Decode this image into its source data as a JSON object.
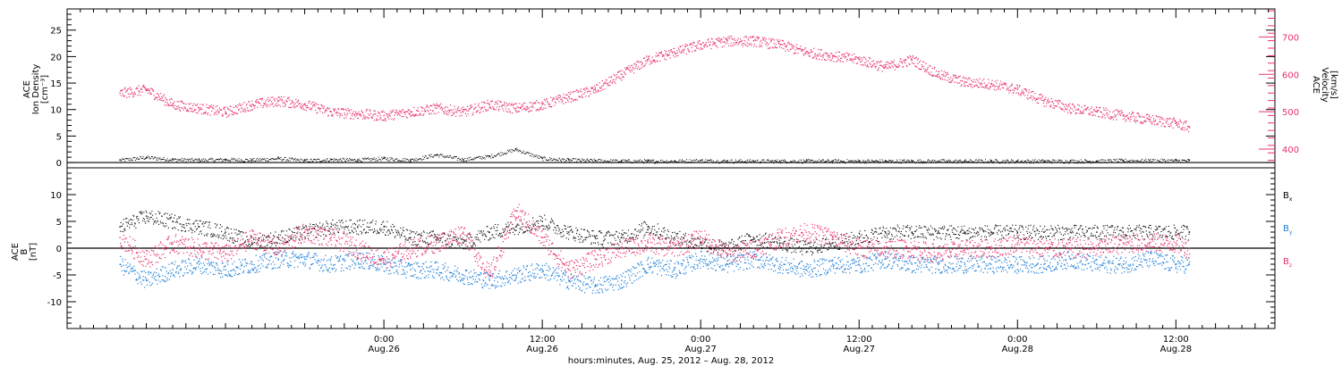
{
  "colors": {
    "black": "#000000",
    "pink": "#e8336b",
    "blue": "#1f7fd8"
  },
  "chart_data": [
    {
      "type": "scatter",
      "panel": "top",
      "left_axis_label_lines": [
        "ACE",
        "Ion Density",
        "[cm⁻³]"
      ],
      "right_axis_label_lines": [
        "ACE",
        "Velocity",
        "[km/s]"
      ],
      "ylim_left": [
        -1,
        29
      ],
      "yticks_left": [
        0,
        5,
        10,
        15,
        20,
        25
      ],
      "ylim_right": [
        350,
        775
      ],
      "yticks_right": [
        400,
        500,
        600,
        700
      ],
      "series": [
        {
          "color": "#000000",
          "axis": "left",
          "values_note": "ion density",
          "x": [
            0,
            2,
            4,
            6,
            8,
            10,
            12,
            14,
            16,
            18,
            20,
            22,
            24,
            26,
            28,
            30,
            32,
            34,
            36,
            38,
            40,
            42,
            44,
            46,
            48,
            50,
            52,
            54,
            56,
            58,
            60,
            62,
            64,
            66,
            68,
            70,
            72,
            74,
            76,
            78,
            80,
            81
          ],
          "y": [
            0.5,
            1.0,
            0.6,
            0.5,
            0.6,
            0.5,
            0.8,
            0.4,
            0.6,
            0.5,
            0.8,
            0.5,
            1.5,
            0.6,
            1.2,
            2.5,
            0.8,
            0.5,
            0.4,
            0.3,
            0.3,
            0.3,
            0.4,
            0.3,
            0.3,
            0.3,
            0.3,
            0.3,
            0.3,
            0.3,
            0.3,
            0.3,
            0.3,
            0.3,
            0.3,
            0.3,
            0.3,
            0.3,
            0.4,
            0.4,
            0.4,
            0.4
          ]
        },
        {
          "color": "#e8336b",
          "axis": "right",
          "values_note": "velocity km/s",
          "x": [
            0,
            2,
            4,
            6,
            8,
            10,
            12,
            14,
            16,
            18,
            20,
            22,
            24,
            26,
            28,
            30,
            32,
            34,
            36,
            38,
            40,
            42,
            44,
            46,
            48,
            50,
            52,
            54,
            56,
            58,
            60,
            62,
            64,
            66,
            68,
            70,
            72,
            74,
            76,
            78,
            80,
            81
          ],
          "y": [
            550,
            560,
            520,
            510,
            500,
            520,
            530,
            520,
            500,
            495,
            490,
            500,
            510,
            500,
            520,
            510,
            520,
            540,
            560,
            600,
            640,
            660,
            680,
            690,
            690,
            680,
            660,
            650,
            640,
            620,
            640,
            600,
            580,
            575,
            560,
            530,
            510,
            500,
            490,
            480,
            470,
            460
          ]
        }
      ]
    },
    {
      "type": "scatter",
      "panel": "bottom",
      "left_axis_label_lines": [
        "ACE",
        "B",
        "[nT]"
      ],
      "ylim": [
        -15,
        15
      ],
      "yticks": [
        -10,
        -5,
        0,
        5,
        10
      ],
      "legend": [
        {
          "base": "B",
          "sub": "x",
          "color": "#000000"
        },
        {
          "base": "B",
          "sub": "y",
          "color": "#1f7fd8"
        },
        {
          "base": "B",
          "sub": "z",
          "color": "#e8336b"
        }
      ],
      "series": [
        {
          "name": "Bx",
          "color": "#000000",
          "x": [
            0,
            2,
            4,
            6,
            8,
            10,
            12,
            14,
            16,
            18,
            20,
            22,
            24,
            26,
            28,
            30,
            32,
            34,
            36,
            38,
            40,
            42,
            44,
            46,
            48,
            50,
            52,
            54,
            56,
            58,
            60,
            62,
            64,
            66,
            68,
            70,
            72,
            74,
            76,
            78,
            80,
            81
          ],
          "y": [
            4,
            6,
            5,
            4,
            3,
            1,
            2,
            3,
            4,
            4,
            4,
            2,
            2,
            1,
            3,
            4,
            5,
            3,
            2,
            2,
            4,
            2,
            1,
            0,
            2,
            1,
            0,
            1,
            2,
            3,
            3,
            3,
            3,
            3,
            3,
            3,
            3,
            3,
            3,
            3,
            3,
            3
          ]
        },
        {
          "name": "By",
          "color": "#1f7fd8",
          "x": [
            0,
            2,
            4,
            6,
            8,
            10,
            12,
            14,
            16,
            18,
            20,
            22,
            24,
            26,
            28,
            30,
            32,
            34,
            36,
            38,
            40,
            42,
            44,
            46,
            48,
            50,
            52,
            54,
            56,
            58,
            60,
            62,
            64,
            66,
            68,
            70,
            72,
            74,
            76,
            78,
            80,
            81
          ],
          "y": [
            -3,
            -6,
            -4,
            -3,
            -4,
            -3,
            -2,
            -2,
            -3,
            -2,
            -3,
            -4,
            -4,
            -5,
            -6,
            -5,
            -4,
            -6,
            -7,
            -6,
            -3,
            -4,
            -2,
            -3,
            -2,
            -3,
            -4,
            -3,
            -3,
            -2,
            -3,
            -3,
            -3,
            -3,
            -3,
            -3,
            -2,
            -3,
            -3,
            -2,
            -3,
            -3
          ]
        },
        {
          "name": "Bz",
          "color": "#e8336b",
          "x": [
            0,
            2,
            4,
            6,
            8,
            10,
            12,
            14,
            16,
            18,
            20,
            22,
            24,
            26,
            28,
            30,
            32,
            34,
            36,
            38,
            40,
            42,
            44,
            46,
            48,
            50,
            52,
            54,
            56,
            58,
            60,
            62,
            64,
            66,
            68,
            70,
            72,
            74,
            76,
            78,
            80,
            81
          ],
          "y": [
            2,
            -2,
            1,
            0,
            -1,
            2,
            0,
            3,
            2,
            0,
            -2,
            0,
            1,
            3,
            -5,
            7,
            2,
            -4,
            -2,
            0,
            1,
            0,
            2,
            -1,
            0,
            2,
            3,
            2,
            0,
            0,
            0,
            -1,
            0,
            0,
            1,
            0,
            0,
            0,
            1,
            1,
            1,
            0
          ]
        }
      ]
    }
  ],
  "x_axis": {
    "xlim_hours": [
      -4,
      87.5
    ],
    "ticks": [
      {
        "hour": 20,
        "time": "0:00",
        "date": "Aug.26"
      },
      {
        "hour": 32,
        "time": "12:00",
        "date": "Aug.26"
      },
      {
        "hour": 44,
        "time": "0:00",
        "date": "Aug.27"
      },
      {
        "hour": 56,
        "time": "12:00",
        "date": "Aug.27"
      },
      {
        "hour": 68,
        "time": "0:00",
        "date": "Aug.28"
      },
      {
        "hour": 80,
        "time": "12:00",
        "date": "Aug.28"
      }
    ],
    "title": "hours:minutes, Aug. 25, 2012 – Aug. 28, 2012"
  }
}
